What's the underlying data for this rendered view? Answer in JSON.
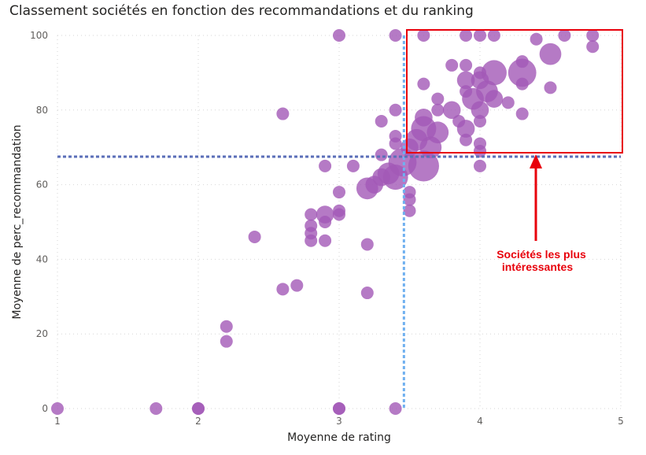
{
  "chart_data": {
    "type": "scatter",
    "title": "Classement sociétés en fonction des recommandations et du ranking",
    "xlabel": "Moyenne de rating",
    "ylabel": "Moyenne de perc_recommandation",
    "xlim": [
      1,
      5
    ],
    "ylim": [
      0,
      100
    ],
    "x_ticks": [
      "1",
      "2",
      "3",
      "4",
      "5"
    ],
    "y_ticks": [
      "0",
      "20",
      "40",
      "60",
      "80",
      "100"
    ],
    "grid": true,
    "point_color": "#a259b6",
    "reference_lines": {
      "x": 3.46,
      "y": 67.5
    },
    "reference_x_color": "#6fb0f0",
    "reference_y_color": "#5b6fb8",
    "highlight_color": "#e8000b",
    "annotation": [
      "Sociétés les plus",
      "intéressantes"
    ],
    "points": [
      {
        "x": 1.0,
        "y": 0,
        "s": 1
      },
      {
        "x": 1.7,
        "y": 0,
        "s": 1
      },
      {
        "x": 2.0,
        "y": 0,
        "s": 1
      },
      {
        "x": 2.0,
        "y": 0,
        "s": 1
      },
      {
        "x": 3.0,
        "y": 0,
        "s": 1
      },
      {
        "x": 3.0,
        "y": 0,
        "s": 1
      },
      {
        "x": 3.4,
        "y": 0,
        "s": 1
      },
      {
        "x": 2.2,
        "y": 18,
        "s": 1
      },
      {
        "x": 2.2,
        "y": 22,
        "s": 1
      },
      {
        "x": 2.6,
        "y": 32,
        "s": 1
      },
      {
        "x": 2.7,
        "y": 33,
        "s": 1
      },
      {
        "x": 3.2,
        "y": 31,
        "s": 1
      },
      {
        "x": 2.4,
        "y": 46,
        "s": 1
      },
      {
        "x": 2.8,
        "y": 45,
        "s": 1
      },
      {
        "x": 2.9,
        "y": 45,
        "s": 1
      },
      {
        "x": 2.8,
        "y": 47,
        "s": 1
      },
      {
        "x": 2.8,
        "y": 49,
        "s": 1
      },
      {
        "x": 2.9,
        "y": 50,
        "s": 1
      },
      {
        "x": 2.8,
        "y": 52,
        "s": 1
      },
      {
        "x": 2.9,
        "y": 52,
        "s": 2
      },
      {
        "x": 3.0,
        "y": 52,
        "s": 1
      },
      {
        "x": 3.0,
        "y": 53,
        "s": 1
      },
      {
        "x": 3.2,
        "y": 44,
        "s": 1
      },
      {
        "x": 3.0,
        "y": 58,
        "s": 1
      },
      {
        "x": 2.6,
        "y": 79,
        "s": 1
      },
      {
        "x": 2.9,
        "y": 65,
        "s": 1
      },
      {
        "x": 3.1,
        "y": 65,
        "s": 1
      },
      {
        "x": 3.2,
        "y": 59,
        "s": 3
      },
      {
        "x": 3.25,
        "y": 60,
        "s": 2
      },
      {
        "x": 3.3,
        "y": 62,
        "s": 2
      },
      {
        "x": 3.3,
        "y": 68,
        "s": 1
      },
      {
        "x": 3.3,
        "y": 77,
        "s": 1
      },
      {
        "x": 3.4,
        "y": 80,
        "s": 1
      },
      {
        "x": 3.4,
        "y": 71,
        "s": 1
      },
      {
        "x": 3.4,
        "y": 73,
        "s": 1
      },
      {
        "x": 3.35,
        "y": 63,
        "s": 3
      },
      {
        "x": 3.45,
        "y": 66,
        "s": 5
      },
      {
        "x": 3.4,
        "y": 62,
        "s": 4
      },
      {
        "x": 3.5,
        "y": 53,
        "s": 1
      },
      {
        "x": 3.5,
        "y": 56,
        "s": 1
      },
      {
        "x": 3.5,
        "y": 58,
        "s": 1
      },
      {
        "x": 3.5,
        "y": 70,
        "s": 2
      },
      {
        "x": 3.55,
        "y": 72,
        "s": 3
      },
      {
        "x": 3.6,
        "y": 65,
        "s": 6
      },
      {
        "x": 3.6,
        "y": 75,
        "s": 4
      },
      {
        "x": 3.65,
        "y": 70,
        "s": 3
      },
      {
        "x": 3.7,
        "y": 74,
        "s": 3
      },
      {
        "x": 3.6,
        "y": 78,
        "s": 2
      },
      {
        "x": 3.6,
        "y": 87,
        "s": 1
      },
      {
        "x": 3.7,
        "y": 80,
        "s": 1
      },
      {
        "x": 3.7,
        "y": 83,
        "s": 1
      },
      {
        "x": 3.8,
        "y": 80,
        "s": 2
      },
      {
        "x": 3.8,
        "y": 92,
        "s": 1
      },
      {
        "x": 3.85,
        "y": 77,
        "s": 1
      },
      {
        "x": 3.9,
        "y": 72,
        "s": 1
      },
      {
        "x": 3.9,
        "y": 75,
        "s": 2
      },
      {
        "x": 3.9,
        "y": 85,
        "s": 1
      },
      {
        "x": 3.9,
        "y": 88,
        "s": 2
      },
      {
        "x": 3.9,
        "y": 92,
        "s": 1
      },
      {
        "x": 3.95,
        "y": 83,
        "s": 3
      },
      {
        "x": 4.0,
        "y": 80,
        "s": 2
      },
      {
        "x": 4.0,
        "y": 77,
        "s": 1
      },
      {
        "x": 4.0,
        "y": 71,
        "s": 1
      },
      {
        "x": 4.0,
        "y": 69,
        "s": 1
      },
      {
        "x": 4.0,
        "y": 65,
        "s": 1
      },
      {
        "x": 4.0,
        "y": 88,
        "s": 2
      },
      {
        "x": 4.0,
        "y": 90,
        "s": 1
      },
      {
        "x": 4.05,
        "y": 85,
        "s": 3
      },
      {
        "x": 4.1,
        "y": 90,
        "s": 4
      },
      {
        "x": 4.1,
        "y": 83,
        "s": 2
      },
      {
        "x": 4.2,
        "y": 82,
        "s": 1
      },
      {
        "x": 4.3,
        "y": 79,
        "s": 1
      },
      {
        "x": 4.3,
        "y": 87,
        "s": 1
      },
      {
        "x": 4.3,
        "y": 93,
        "s": 1
      },
      {
        "x": 4.3,
        "y": 90,
        "s": 5
      },
      {
        "x": 4.5,
        "y": 86,
        "s": 1
      },
      {
        "x": 4.5,
        "y": 95,
        "s": 3
      },
      {
        "x": 4.4,
        "y": 99,
        "s": 1
      },
      {
        "x": 4.6,
        "y": 100,
        "s": 1
      },
      {
        "x": 4.8,
        "y": 97,
        "s": 1
      },
      {
        "x": 4.8,
        "y": 100,
        "s": 1
      },
      {
        "x": 3.0,
        "y": 100,
        "s": 1
      },
      {
        "x": 3.4,
        "y": 100,
        "s": 1
      },
      {
        "x": 3.6,
        "y": 100,
        "s": 1
      },
      {
        "x": 3.9,
        "y": 100,
        "s": 1
      },
      {
        "x": 4.0,
        "y": 100,
        "s": 1
      },
      {
        "x": 4.1,
        "y": 100,
        "s": 1
      }
    ]
  }
}
